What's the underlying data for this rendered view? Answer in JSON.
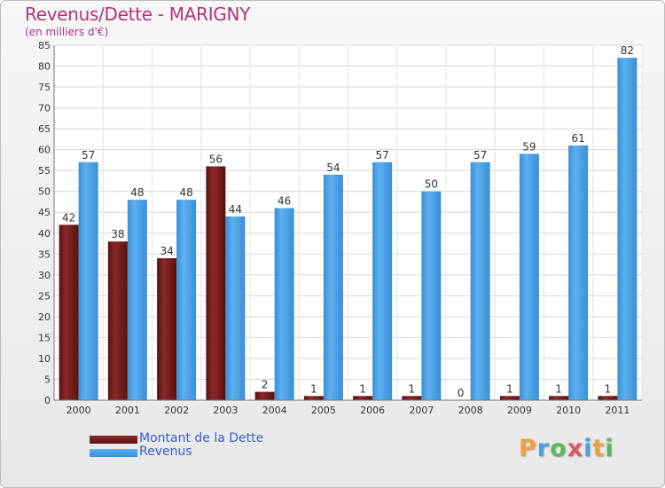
{
  "title": "Revenus/Dette - MARIGNY",
  "subtitle": "(en milliers d'€)",
  "logo": {
    "letters": [
      "P",
      "r",
      "o",
      "x",
      "i",
      "t",
      "i"
    ],
    "colors": [
      "#f0a040",
      "#4aa0e0",
      "#5cb85c",
      "#e05a5a",
      "#4aa0e0",
      "#f0a040",
      "#5cb85c"
    ]
  },
  "colors": {
    "dette": "#7a1e1e",
    "revenus": "#4da3e8",
    "title": "#b0337a",
    "legend_text": "#3b5ec9"
  },
  "chart_data": {
    "type": "bar",
    "title": "Revenus/Dette - MARIGNY",
    "ylabel": "(en milliers d'€)",
    "xlabel": "",
    "ylim": [
      0,
      85
    ],
    "ytick_step": 5,
    "yticks": [
      "0",
      "5",
      "10",
      "15",
      "20",
      "25",
      "30",
      "35",
      "40",
      "45",
      "50",
      "55",
      "60",
      "65",
      "70",
      "75",
      "80",
      "85"
    ],
    "grid": true,
    "legend_position": "bottom-left",
    "categories": [
      "2000",
      "2001",
      "2002",
      "2003",
      "2004",
      "2005",
      "2006",
      "2007",
      "2008",
      "2009",
      "2010",
      "2011"
    ],
    "series": [
      {
        "name": "Montant de la Dette",
        "values": [
          42,
          38,
          34,
          56,
          2,
          1,
          1,
          1,
          0,
          1,
          1,
          1
        ],
        "labels": [
          "42",
          "38",
          "34",
          "56",
          "2",
          "1",
          "1",
          "1",
          "0",
          "1",
          "1",
          "1"
        ]
      },
      {
        "name": "Revenus",
        "values": [
          57,
          48,
          48,
          44,
          46,
          54,
          57,
          50,
          57,
          59,
          61,
          82
        ],
        "labels": [
          "57",
          "48",
          "48",
          "44",
          "46",
          "54",
          "57",
          "50",
          "57",
          "59",
          "61",
          "82"
        ]
      }
    ]
  }
}
